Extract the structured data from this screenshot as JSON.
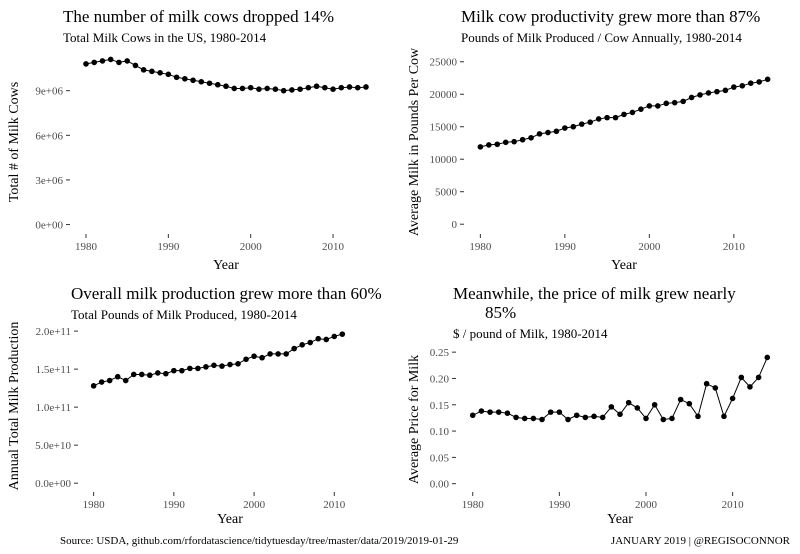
{
  "footer": {
    "source": "Source: USDA, github.com/rfordatascience/tidytuesday/tree/master/data/2019/2019-01-29",
    "credit": "JANUARY 2019 | @REGISOCONNOR"
  },
  "chart_data": [
    {
      "type": "line",
      "title": "The number of milk cows dropped 14%",
      "subtitle": "Total Milk Cows in the US, 1980-2014",
      "xlabel": "Year",
      "ylabel": "Total # of Milk Cows",
      "xlim": [
        1978.3,
        2015.7
      ],
      "ylim": [
        -500000,
        11600000
      ],
      "x_ticks": [
        1980,
        1990,
        2000,
        2010
      ],
      "y_ticks": [
        0,
        3000000,
        6000000,
        9000000
      ],
      "y_tick_labels": [
        "0e+00",
        "3e+06",
        "6e+06",
        "9e+06"
      ],
      "grid": false,
      "x": [
        1980,
        1981,
        1982,
        1983,
        1984,
        1985,
        1986,
        1987,
        1988,
        1989,
        1990,
        1991,
        1992,
        1993,
        1994,
        1995,
        1996,
        1997,
        1998,
        1999,
        2000,
        2001,
        2002,
        2003,
        2004,
        2005,
        2006,
        2007,
        2008,
        2009,
        2010,
        2011,
        2012,
        2013,
        2014
      ],
      "y": [
        10800000,
        10900000,
        11000000,
        11100000,
        10900000,
        11000000,
        10700000,
        10400000,
        10300000,
        10200000,
        10100000,
        9900000,
        9800000,
        9700000,
        9600000,
        9500000,
        9400000,
        9300000,
        9150000,
        9150000,
        9200000,
        9100000,
        9150000,
        9100000,
        9000000,
        9050000,
        9100000,
        9200000,
        9300000,
        9200000,
        9100000,
        9200000,
        9250000,
        9200000,
        9250000
      ]
    },
    {
      "type": "line",
      "title": "Milk cow productivity grew more than 87%",
      "subtitle": "Pounds of Milk Produced / Cow Annually, 1980-2014",
      "xlabel": "Year",
      "ylabel": "Average Milk in Pounds Per Cow",
      "xlim": [
        1978.3,
        2015.7
      ],
      "ylim": [
        -1200,
        26500
      ],
      "x_ticks": [
        1980,
        1990,
        2000,
        2010
      ],
      "y_ticks": [
        0,
        5000,
        10000,
        15000,
        20000,
        25000
      ],
      "y_tick_labels": [
        "0",
        "5000",
        "10000",
        "15000",
        "20000",
        "25000"
      ],
      "grid": false,
      "x": [
        1980,
        1981,
        1982,
        1983,
        1984,
        1985,
        1986,
        1987,
        1988,
        1989,
        1990,
        1991,
        1992,
        1993,
        1994,
        1995,
        1996,
        1997,
        1998,
        1999,
        2000,
        2001,
        2002,
        2003,
        2004,
        2005,
        2006,
        2007,
        2008,
        2009,
        2010,
        2011,
        2012,
        2013,
        2014
      ],
      "y": [
        11900,
        12200,
        12300,
        12600,
        12700,
        13000,
        13300,
        13900,
        14100,
        14300,
        14800,
        15000,
        15400,
        15700,
        16200,
        16400,
        16400,
        16900,
        17200,
        17700,
        18200,
        18200,
        18600,
        18700,
        18900,
        19500,
        19900,
        20200,
        20400,
        20600,
        21100,
        21300,
        21700,
        21900,
        22300
      ]
    },
    {
      "type": "line",
      "title": "Overall milk production grew more than 60%",
      "subtitle": "Total Pounds of Milk Produced, 1980-2014",
      "xlabel": "Year",
      "ylabel": "Annual Total Milk Production",
      "xlim": [
        1978.3,
        2015.7
      ],
      "ylim": [
        -9000000000,
        212000000000
      ],
      "x_ticks": [
        1980,
        1990,
        2000,
        2010
      ],
      "y_ticks": [
        0,
        50000000000,
        100000000000,
        150000000000,
        200000000000
      ],
      "y_tick_labels": [
        "0.0e+00",
        "5.0e+10",
        "1.0e+11",
        "1.5e+11",
        "2.0e+11"
      ],
      "grid": false,
      "x": [
        1980,
        1981,
        1982,
        1983,
        1984,
        1985,
        1986,
        1987,
        1988,
        1989,
        1990,
        1991,
        1992,
        1993,
        1994,
        1995,
        1996,
        1997,
        1998,
        1999,
        2000,
        2001,
        2002,
        2003,
        2004,
        2005,
        2006,
        2007,
        2008,
        2009,
        2010,
        2011
      ],
      "y": [
        128000000000,
        133000000000,
        135000000000,
        140000000000,
        135000000000,
        143000000000,
        143000000000,
        142000000000,
        145000000000,
        144000000000,
        148000000000,
        148000000000,
        151000000000,
        151000000000,
        153000000000,
        155000000000,
        154000000000,
        156000000000,
        157000000000,
        163000000000,
        167000000000,
        165000000000,
        170000000000,
        170000000000,
        170000000000,
        177000000000,
        182000000000,
        185000000000,
        190000000000,
        189000000000,
        193000000000,
        196000000000
      ]
    },
    {
      "type": "line",
      "title": "Meanwhile, the price of milk grew nearly 85%",
      "title_lines": [
        "Meanwhile, the price of milk grew nearly",
        "85%"
      ],
      "subtitle": "$ / pound of Milk, 1980-2014",
      "xlabel": "Year",
      "ylabel": "Average Price for Milk",
      "xlim": [
        1978.3,
        2015.7
      ],
      "ylim": [
        -0.012,
        0.256
      ],
      "x_ticks": [
        1980,
        1990,
        2000,
        2010
      ],
      "y_ticks": [
        0.0,
        0.05,
        0.1,
        0.15,
        0.2,
        0.25
      ],
      "y_tick_labels": [
        "0.00",
        "0.05",
        "0.10",
        "0.15",
        "0.20",
        "0.25"
      ],
      "grid": false,
      "x": [
        1980,
        1981,
        1982,
        1983,
        1984,
        1985,
        1986,
        1987,
        1988,
        1989,
        1990,
        1991,
        1992,
        1993,
        1994,
        1995,
        1996,
        1997,
        1998,
        1999,
        2000,
        2001,
        2002,
        2003,
        2004,
        2005,
        2006,
        2007,
        2008,
        2009,
        2010,
        2011,
        2012,
        2013,
        2014
      ],
      "y": [
        0.13,
        0.138,
        0.136,
        0.136,
        0.134,
        0.126,
        0.124,
        0.124,
        0.122,
        0.136,
        0.136,
        0.122,
        0.13,
        0.126,
        0.128,
        0.126,
        0.146,
        0.132,
        0.154,
        0.144,
        0.124,
        0.15,
        0.122,
        0.124,
        0.16,
        0.152,
        0.128,
        0.19,
        0.182,
        0.128,
        0.162,
        0.202,
        0.184,
        0.202,
        0.24
      ]
    }
  ]
}
